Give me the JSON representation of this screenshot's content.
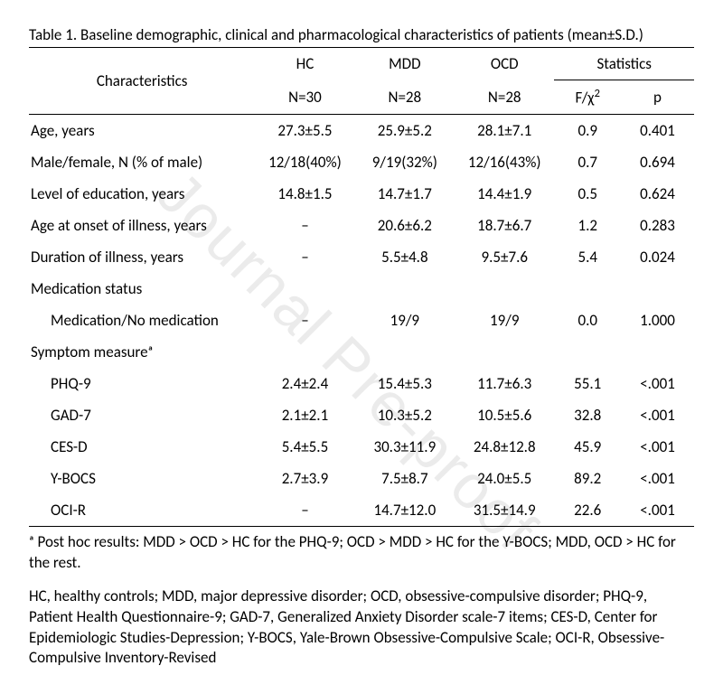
{
  "watermark": "Journal Pre-proof",
  "caption": "Table 1. Baseline demographic, clinical and pharmacological characteristics of patients (mean±S.D.)",
  "header": {
    "characteristics": "Characteristics",
    "groups": [
      "HC",
      "MDD",
      "OCD"
    ],
    "ns": [
      "N=30",
      "N=28",
      "N=28"
    ],
    "statistics": "Statistics",
    "stat_cols": [
      "F/χ²",
      "p"
    ]
  },
  "rows": [
    {
      "label": "Age, years",
      "indent": false,
      "hc": "27.3±5.5",
      "mdd": "25.9±5.2",
      "ocd": "28.1±7.1",
      "f": "0.9",
      "p": "0.401"
    },
    {
      "label": "Male/female, N (% of male)",
      "indent": false,
      "hc": "12/18(40%)",
      "mdd": "9/19(32%)",
      "ocd": "12/16(43%)",
      "f": "0.7",
      "p": "0.694"
    },
    {
      "label": "Level of education, years",
      "indent": false,
      "hc": "14.8±1.5",
      "mdd": "14.7±1.7",
      "ocd": "14.4±1.9",
      "f": "0.5",
      "p": "0.624"
    },
    {
      "label": "Age at onset of illness, years",
      "indent": false,
      "hc": "–",
      "mdd": "20.6±6.2",
      "ocd": "18.7±6.7",
      "f": "1.2",
      "p": "0.283"
    },
    {
      "label": "Duration of illness, years",
      "indent": false,
      "hc": "–",
      "mdd": "5.5±4.8",
      "ocd": "9.5±7.6",
      "f": "5.4",
      "p": "0.024"
    },
    {
      "label": "Medication status",
      "indent": false,
      "hc": "",
      "mdd": "",
      "ocd": "",
      "f": "",
      "p": ""
    },
    {
      "label": "Medication/No medication",
      "indent": true,
      "hc": "–",
      "mdd": "19/9",
      "ocd": "19/9",
      "f": "0.0",
      "p": "1.000"
    },
    {
      "label": "Symptom measureᵃ",
      "indent": false,
      "hc": "",
      "mdd": "",
      "ocd": "",
      "f": "",
      "p": ""
    },
    {
      "label": "PHQ-9",
      "indent": true,
      "hc": "2.4±2.4",
      "mdd": "15.4±5.3",
      "ocd": "11.7±6.3",
      "f": "55.1",
      "p": "<.001"
    },
    {
      "label": "GAD-7",
      "indent": true,
      "hc": "2.1±2.1",
      "mdd": "10.3±5.2",
      "ocd": "10.5±5.6",
      "f": "32.8",
      "p": "<.001"
    },
    {
      "label": "CES-D",
      "indent": true,
      "hc": "5.4±5.5",
      "mdd": "30.3±11.9",
      "ocd": "24.8±12.8",
      "f": "45.9",
      "p": "<.001"
    },
    {
      "label": "Y-BOCS",
      "indent": true,
      "hc": "2.7±3.9",
      "mdd": "7.5±8.7",
      "ocd": "24.0±5.5",
      "f": "89.2",
      "p": "<.001"
    },
    {
      "label": "OCI-R",
      "indent": true,
      "hc": "–",
      "mdd": "14.7±12.0",
      "ocd": "31.5±14.9",
      "f": "22.6",
      "p": "<.001"
    }
  ],
  "footnote1": "ᵃ Post hoc results: MDD > OCD > HC for the PHQ-9;    OCD > MDD > HC for the Y-BOCS; MDD, OCD > HC for the rest.",
  "footnote2": "HC, healthy controls; MDD, major depressive disorder;    OCD, obsessive-compulsive disorder; PHQ-9, Patient Health Questionnaire-9; GAD-7, Generalized Anxiety Disorder scale-7 items; CES-D, Center for Epidemiologic Studies-Depression; Y-BOCS, Yale-Brown Obsessive-Compulsive Scale; OCI-R, Obsessive-Compulsive Inventory-Revised",
  "col_widths": {
    "label": "34%",
    "g": "15%",
    "g2": "15%",
    "g3": "15%",
    "f": "10%",
    "p": "11%"
  }
}
